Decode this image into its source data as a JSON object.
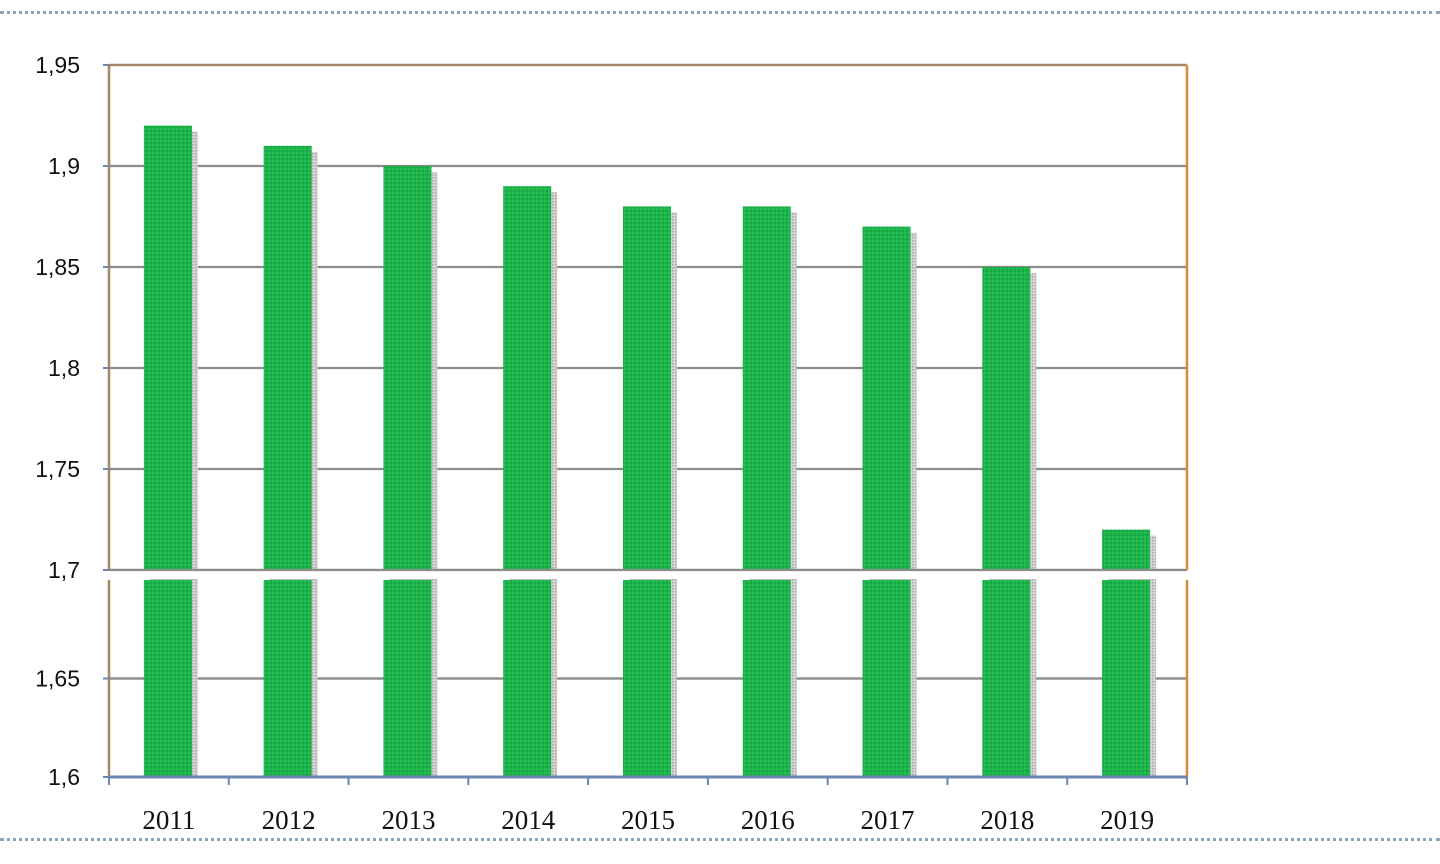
{
  "chart_data": {
    "type": "bar",
    "title": "",
    "xlabel": "",
    "ylabel": "",
    "categories": [
      "2011",
      "2012",
      "2013",
      "2014",
      "2015",
      "2016",
      "2017",
      "2018",
      "2019"
    ],
    "values": [
      1.92,
      1.91,
      1.9,
      1.89,
      1.88,
      1.88,
      1.87,
      1.85,
      1.72
    ],
    "ylim": [
      1.6,
      1.95
    ],
    "axis_break": 1.7,
    "yticks": [
      1.6,
      1.65,
      1.7,
      1.75,
      1.8,
      1.85,
      1.9,
      1.95
    ],
    "ytick_labels": [
      "1,6",
      "1,65",
      "1,7",
      "1,75",
      "1,8",
      "1,85",
      "1,9",
      "1,95"
    ],
    "grid": true,
    "legend": "none",
    "colors": {
      "bar": "#1db34a",
      "bar_shadow": "#b5b5b5",
      "grid": "#8c8c8c",
      "frame_left": "#a58763",
      "frame_right": "#d88a3a",
      "axis": "#6c86b3"
    }
  }
}
